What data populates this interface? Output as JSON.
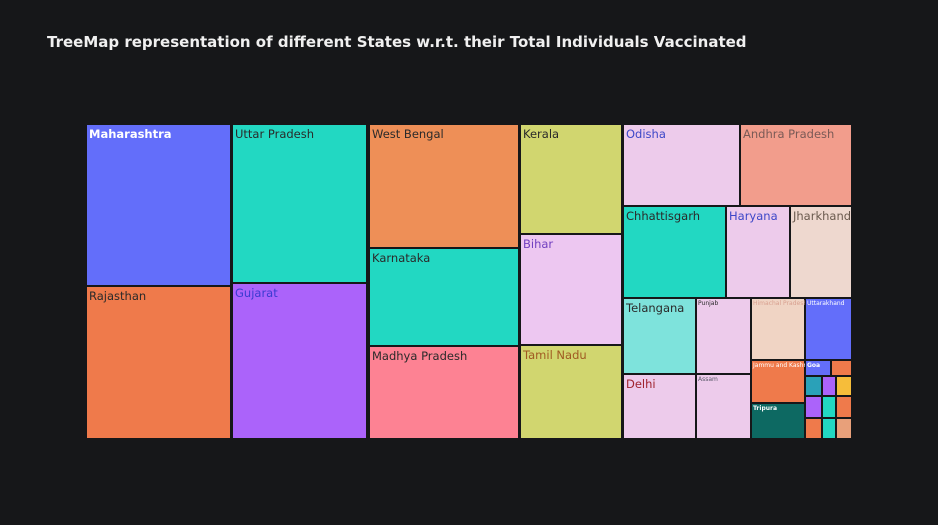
{
  "chart_data": {
    "type": "treemap",
    "title": "TreeMap representation of different States w.r.t. their Total Individuals Vaccinated",
    "nodes": [
      {
        "label": "Maharashtra",
        "value": 100,
        "color": "#636efa",
        "label_color": "#ffffff",
        "bold": true
      },
      {
        "label": "Rajasthan",
        "value": 91,
        "color": "#ef7a4b",
        "label_color": "#2a2a2a"
      },
      {
        "label": "Uttar Pradesh",
        "value": 97,
        "color": "#22d8c2",
        "label_color": "#2a2a2a"
      },
      {
        "label": "Gujarat",
        "value": 95,
        "color": "#ab63fa",
        "label_color": "#3b3bd1"
      },
      {
        "label": "West Bengal",
        "value": 75,
        "color": "#ee8f57",
        "label_color": "#2a2a2a"
      },
      {
        "label": "Karnataka",
        "value": 58,
        "color": "#22d8c2",
        "label_color": "#2a2a2a"
      },
      {
        "label": "Madhya Pradesh",
        "value": 56,
        "color": "#fd8293",
        "label_color": "#2a2a2a"
      },
      {
        "label": "Kerala",
        "value": 39,
        "color": "#d1d66f",
        "label_color": "#2a2a2a"
      },
      {
        "label": "Bihar",
        "value": 40,
        "color": "#edc7f1",
        "label_color": "#7140c0"
      },
      {
        "label": "Tamil Nadu",
        "value": 33,
        "color": "#d1d66f",
        "label_color": "#a05a22"
      },
      {
        "label": "Odisha",
        "value": 32,
        "color": "#edcbeb",
        "label_color": "#3d47c8"
      },
      {
        "label": "Andhra Pradesh",
        "value": 32,
        "color": "#f29d8c",
        "label_color": "#7a5a56"
      },
      {
        "label": "Chhattisgarh",
        "value": 24,
        "color": "#22d8c2",
        "label_color": "#2a2a2a"
      },
      {
        "label": "Haryana",
        "value": 17,
        "color": "#edcbeb",
        "label_color": "#3d47c8"
      },
      {
        "label": "Jharkhand",
        "value": 17,
        "color": "#eed8cf",
        "label_color": "#6a5a4e"
      },
      {
        "label": "Telangana",
        "value": 14,
        "color": "#7ee3dc",
        "label_color": "#2a2a2a"
      },
      {
        "label": "Punjab",
        "value": 10,
        "color": "#edcbeb",
        "label_color": "#2a2a2a"
      },
      {
        "label": "Delhi",
        "value": 12,
        "color": "#edcbeb",
        "label_color": "#a0232e"
      },
      {
        "label": "Assam",
        "value": 10,
        "color": "#edcbeb",
        "label_color": "#5a5a6a"
      },
      {
        "label": "Himachal Pradesh",
        "value": 6,
        "color": "#f0d4c4",
        "label_color": "#d8a090"
      },
      {
        "label": "Uttarakhand",
        "value": 6,
        "color": "#636efa",
        "label_color": "#ffffff"
      },
      {
        "label": "Jammu and Kashmir",
        "value": 5,
        "color": "#ef7a4b",
        "label_color": "#ffffff"
      },
      {
        "label": "Tripura",
        "value": 3,
        "color": "#0d6962",
        "label_color": "#ffffff",
        "bold": true
      },
      {
        "label": "Goa",
        "value": 1.2,
        "color": "#636efa",
        "label_color": "#ffffff",
        "bold": true
      },
      {
        "label": "",
        "value": 1.2,
        "color": "#ef7a4b"
      },
      {
        "label": "",
        "value": 0.8,
        "color": "#2aa1b8"
      },
      {
        "label": "",
        "value": 0.8,
        "color": "#ab63fa"
      },
      {
        "label": "",
        "value": 0.5,
        "color": "#f6bd3a"
      },
      {
        "label": "",
        "value": 0.8,
        "color": "#ab63fa"
      },
      {
        "label": "",
        "value": 0.8,
        "color": "#22d8c2"
      },
      {
        "label": "",
        "value": 0.8,
        "color": "#ef7a4b"
      },
      {
        "label": "",
        "value": 0.5,
        "color": "#ef7a4b"
      },
      {
        "label": "",
        "value": 0.4,
        "color": "#22d8c2"
      },
      {
        "label": "",
        "value": 0.5,
        "color": "#e8a07a"
      }
    ]
  }
}
